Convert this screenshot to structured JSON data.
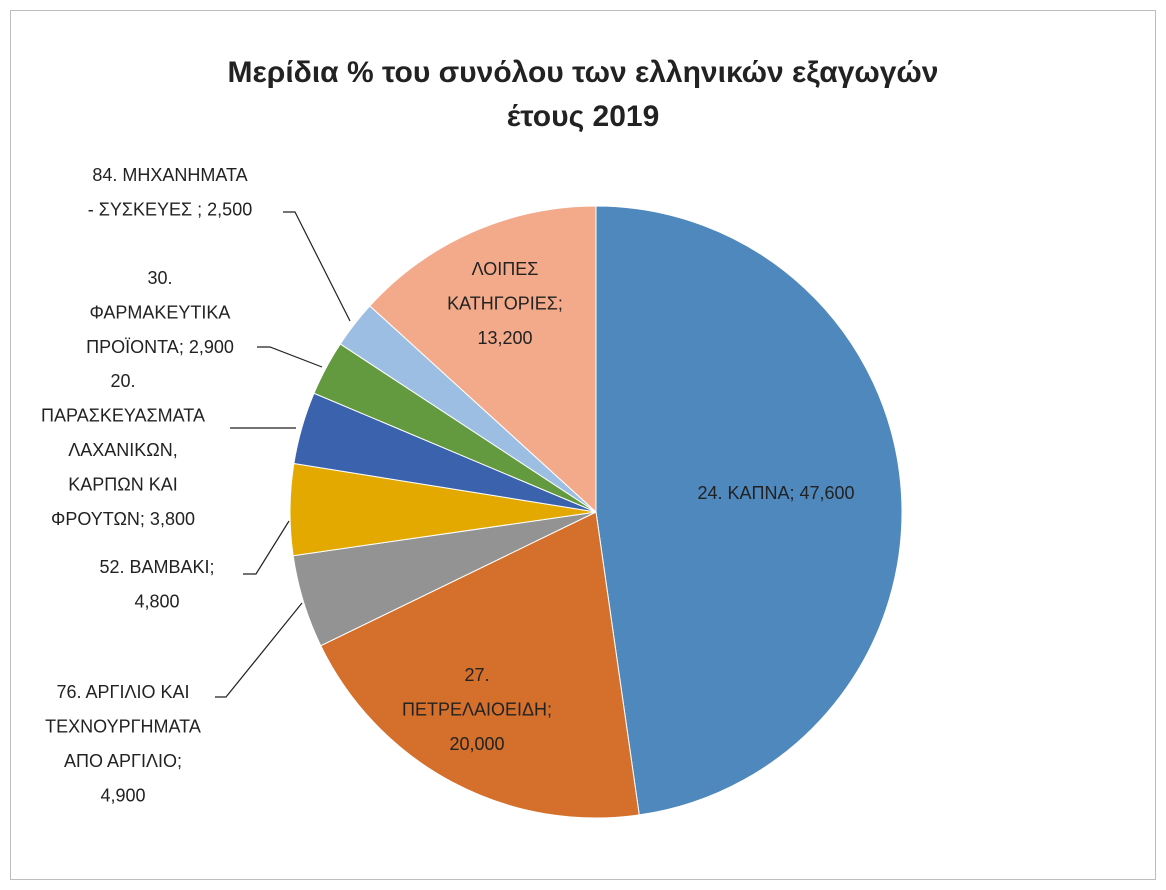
{
  "chart_data": {
    "type": "pie",
    "title": "Μερίδια % του συνόλου των ελληνικών εξαγωγών\nέτους 2019",
    "values": [
      47.6,
      20.0,
      4.9,
      4.8,
      3.8,
      2.9,
      2.5,
      13.2
    ],
    "value_labels": [
      "24. ΚΑΠΝΑ; 47,600",
      "27.\nΠΕΤΡΕΛΑΙΟΕΙΔΗ;\n20,000",
      "76. ΑΡΓΙΛΙΟ ΚΑΙ\nΤΕΧΝΟΥΡΓΗΜΑΤΑ\nΑΠΟ ΑΡΓΙΛΙΟ;\n4,900",
      "52. ΒΑΜΒΑΚΙ;\n4,800",
      "20.\nΠΑΡΑΣΚΕΥΑΣΜΑΤΑ\nΛΑΧΑΝΙΚΩΝ,\nΚΑΡΠΩΝ ΚΑΙ\nΦΡΟΥΤΩΝ; 3,800",
      "30.\nΦΑΡΜΑΚΕΥΤΙΚΑ\nΠΡΟΪΟΝΤΑ; 2,900",
      "84. ΜΗΧΑΝΗΜΑΤΑ\n- ΣΥΣΚΕΥΕΣ ; 2,500",
      "ΛΟΙΠΕΣ\nΚΑΤΗΓΟΡΙΕΣ;\n13,200"
    ],
    "colors": [
      "#4f88bd",
      "#d4702b",
      "#939393",
      "#e3a900",
      "#3b63ad",
      "#639a3f",
      "#9dbee3",
      "#f2aa8b"
    ]
  }
}
